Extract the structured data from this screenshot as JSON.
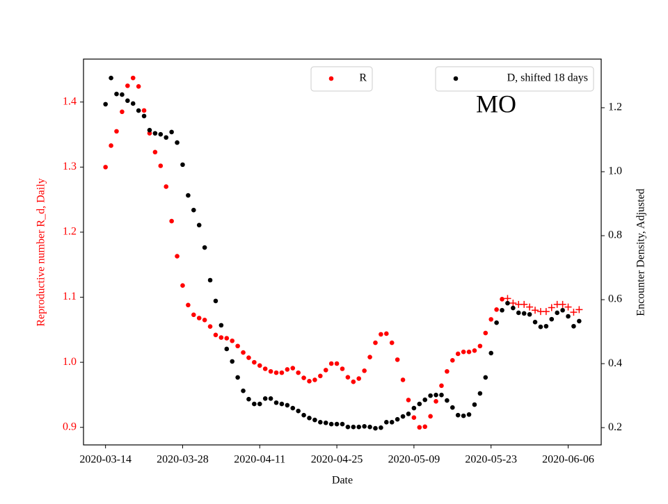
{
  "chart_data": {
    "type": "scatter",
    "title": "MO",
    "xlabel": "Date",
    "ylabel": "Reproductive number R_d, Daily",
    "y2label": "Encounter Density, Adjusted",
    "y_axis_color": "#ff0000",
    "x": [
      "2020-03-14",
      "2020-03-15",
      "2020-03-16",
      "2020-03-17",
      "2020-03-18",
      "2020-03-19",
      "2020-03-20",
      "2020-03-21",
      "2020-03-22",
      "2020-03-23",
      "2020-03-24",
      "2020-03-25",
      "2020-03-26",
      "2020-03-27",
      "2020-03-28",
      "2020-03-29",
      "2020-03-30",
      "2020-03-31",
      "2020-04-01",
      "2020-04-02",
      "2020-04-03",
      "2020-04-04",
      "2020-04-05",
      "2020-04-06",
      "2020-04-07",
      "2020-04-08",
      "2020-04-09",
      "2020-04-10",
      "2020-04-11",
      "2020-04-12",
      "2020-04-13",
      "2020-04-14",
      "2020-04-15",
      "2020-04-16",
      "2020-04-17",
      "2020-04-18",
      "2020-04-19",
      "2020-04-20",
      "2020-04-21",
      "2020-04-22",
      "2020-04-23",
      "2020-04-24",
      "2020-04-25",
      "2020-04-26",
      "2020-04-27",
      "2020-04-28",
      "2020-04-29",
      "2020-04-30",
      "2020-05-01",
      "2020-05-02",
      "2020-05-03",
      "2020-05-04",
      "2020-05-05",
      "2020-05-06",
      "2020-05-07",
      "2020-05-08",
      "2020-05-09",
      "2020-05-10",
      "2020-05-11",
      "2020-05-12",
      "2020-05-13",
      "2020-05-14",
      "2020-05-15",
      "2020-05-16",
      "2020-05-17",
      "2020-05-18",
      "2020-05-19",
      "2020-05-20",
      "2020-05-21",
      "2020-05-22",
      "2020-05-23",
      "2020-05-24",
      "2020-05-25",
      "2020-05-26",
      "2020-05-27",
      "2020-05-28",
      "2020-05-29",
      "2020-05-30",
      "2020-05-31",
      "2020-06-01",
      "2020-06-02",
      "2020-06-03",
      "2020-06-04",
      "2020-06-05",
      "2020-06-06",
      "2020-06-07",
      "2020-06-08"
    ],
    "series": [
      {
        "name": "R",
        "color": "#ff0000",
        "marker": "o",
        "legend_loc": "upper center",
        "values": [
          1.3,
          1.333,
          1.355,
          1.385,
          1.425,
          1.437,
          1.424,
          1.387,
          1.352,
          1.323,
          1.302,
          1.27,
          1.217,
          1.163,
          1.118,
          1.088,
          1.073,
          1.068,
          1.065,
          1.055,
          1.042,
          1.038,
          1.037,
          1.033,
          1.025,
          1.015,
          1.007,
          1.0,
          0.995,
          0.99,
          0.986,
          0.984,
          0.984,
          0.989,
          0.991,
          0.984,
          0.976,
          0.971,
          0.973,
          0.979,
          0.988,
          0.998,
          0.998,
          0.99,
          0.977,
          0.97,
          0.975,
          0.987,
          1.008,
          1.03,
          1.043,
          1.044,
          1.03,
          1.004,
          0.973,
          0.942,
          0.915,
          0.9,
          0.901,
          0.917,
          0.94,
          0.964,
          0.986,
          1.003,
          1.013,
          1.016,
          1.016,
          1.018,
          1.025,
          1.045,
          1.066,
          1.081,
          1.097,
          null,
          null,
          null,
          null,
          null,
          null,
          null,
          null,
          null,
          null,
          null,
          null,
          null,
          null
        ]
      },
      {
        "color": "#ff0000",
        "marker": "+",
        "values": [
          null,
          null,
          null,
          null,
          null,
          null,
          null,
          null,
          null,
          null,
          null,
          null,
          null,
          null,
          null,
          null,
          null,
          null,
          null,
          null,
          null,
          null,
          null,
          null,
          null,
          null,
          null,
          null,
          null,
          null,
          null,
          null,
          null,
          null,
          null,
          null,
          null,
          null,
          null,
          null,
          null,
          null,
          null,
          null,
          null,
          null,
          null,
          null,
          null,
          null,
          null,
          null,
          null,
          null,
          null,
          null,
          null,
          null,
          null,
          null,
          null,
          null,
          null,
          null,
          null,
          null,
          null,
          null,
          null,
          null,
          null,
          null,
          null,
          1.098,
          1.091,
          1.089,
          1.089,
          1.085,
          1.08,
          1.078,
          1.078,
          1.084,
          1.089,
          1.089,
          1.085,
          1.077,
          1.081
        ]
      },
      {
        "name": "D, shifted 18 days",
        "color": "#000000",
        "marker": "o",
        "axis": "y2",
        "legend_loc": "upper right",
        "values": [
          1.211,
          1.293,
          1.243,
          1.241,
          1.222,
          1.213,
          1.191,
          1.174,
          1.13,
          1.12,
          1.117,
          1.107,
          1.124,
          1.091,
          1.022,
          0.926,
          0.88,
          0.833,
          0.763,
          0.661,
          0.596,
          0.52,
          0.446,
          0.407,
          0.357,
          0.315,
          0.289,
          0.274,
          0.274,
          0.291,
          0.291,
          0.278,
          0.274,
          0.27,
          0.261,
          0.252,
          0.239,
          0.23,
          0.224,
          0.217,
          0.215,
          0.211,
          0.211,
          0.211,
          0.202,
          0.202,
          0.202,
          0.204,
          0.202,
          0.198,
          0.2,
          0.217,
          0.217,
          0.226,
          0.235,
          0.243,
          0.261,
          0.274,
          0.287,
          0.3,
          0.302,
          0.302,
          0.285,
          0.263,
          0.239,
          0.237,
          0.241,
          0.272,
          0.307,
          0.357,
          0.433,
          0.528,
          0.567,
          0.589,
          0.574,
          0.559,
          0.557,
          0.554,
          0.53,
          0.515,
          0.517,
          0.539,
          0.559,
          0.567,
          0.548,
          0.517,
          0.533
        ]
      }
    ],
    "xlim": [
      "2020-03-10",
      "2020-06-12"
    ],
    "xticks": [
      "2020-03-14",
      "2020-03-28",
      "2020-04-11",
      "2020-04-25",
      "2020-05-09",
      "2020-05-23",
      "2020-06-06"
    ],
    "ylim": [
      0.873,
      1.466
    ],
    "yticks": [
      0.9,
      {
        "value": 1,
        "label": "1.0"
      },
      1.1,
      1.2,
      1.3,
      1.4
    ],
    "y2lim": [
      0.146,
      1.352
    ],
    "y2ticks": [
      0.2,
      0.4,
      0.6,
      0.8,
      {
        "value": 1,
        "label": "1.0"
      },
      1.2
    ]
  }
}
